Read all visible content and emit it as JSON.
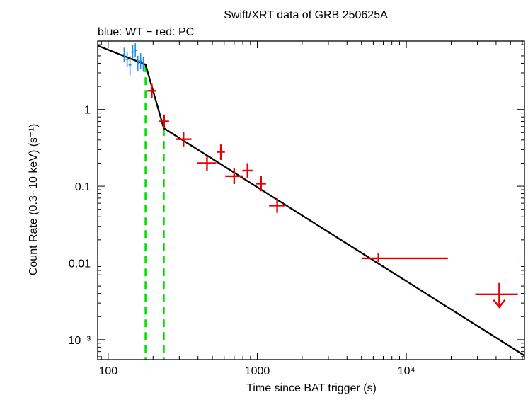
{
  "chart_data": {
    "type": "scatter",
    "title": "Swift/XRT data of GRB 250625A",
    "subtitle": "blue: WT − red: PC",
    "xlabel": "Time since BAT trigger (s)",
    "ylabel": "Count Rate (0.3−10 keV) (s⁻¹)",
    "xscale": "log",
    "yscale": "log",
    "xlim": [
      85,
      62000
    ],
    "ylim": [
      0.00055,
      7.8
    ],
    "x_ticks": [
      {
        "value": 100,
        "label": "100"
      },
      {
        "value": 1000,
        "label": "1000"
      },
      {
        "value": 10000,
        "label": "10⁴"
      }
    ],
    "y_ticks": [
      {
        "value": 1,
        "label": "1"
      },
      {
        "value": 0.1,
        "label": "0.1"
      },
      {
        "value": 0.01,
        "label": "0.01"
      },
      {
        "value": 0.001,
        "label": "10⁻³"
      }
    ],
    "series": [
      {
        "name": "WT",
        "color": "#1e8ce6",
        "points": [
          {
            "x": 128,
            "xlo": 125,
            "xhi": 131,
            "y": 5.2,
            "ylo": 4.2,
            "yhi": 6.4
          },
          {
            "x": 134,
            "xlo": 131,
            "xhi": 137,
            "y": 4.5,
            "ylo": 3.6,
            "yhi": 5.6
          },
          {
            "x": 140,
            "xlo": 137,
            "xhi": 143,
            "y": 3.8,
            "ylo": 2.8,
            "yhi": 5.0
          },
          {
            "x": 146,
            "xlo": 143,
            "xhi": 149,
            "y": 5.6,
            "ylo": 4.5,
            "yhi": 6.9
          },
          {
            "x": 152,
            "xlo": 149,
            "xhi": 155,
            "y": 5.9,
            "ylo": 4.8,
            "yhi": 7.3
          },
          {
            "x": 158,
            "xlo": 155,
            "xhi": 161,
            "y": 4.0,
            "ylo": 3.2,
            "yhi": 5.0
          },
          {
            "x": 165,
            "xlo": 161,
            "xhi": 169,
            "y": 4.3,
            "ylo": 3.4,
            "yhi": 5.4
          },
          {
            "x": 172,
            "xlo": 169,
            "xhi": 175,
            "y": 3.9,
            "ylo": 3.1,
            "yhi": 4.9
          }
        ]
      },
      {
        "name": "PC",
        "color": "#e60000",
        "points": [
          {
            "x": 196,
            "xlo": 183,
            "xhi": 210,
            "y": 1.75,
            "ylo": 1.4,
            "yhi": 2.2
          },
          {
            "x": 237,
            "xlo": 219,
            "xhi": 256,
            "y": 0.7,
            "ylo": 0.57,
            "yhi": 0.86
          },
          {
            "x": 320,
            "xlo": 283,
            "xhi": 362,
            "y": 0.41,
            "ylo": 0.33,
            "yhi": 0.51
          },
          {
            "x": 460,
            "xlo": 395,
            "xhi": 530,
            "y": 0.2,
            "ylo": 0.16,
            "yhi": 0.25
          },
          {
            "x": 570,
            "xlo": 535,
            "xhi": 607,
            "y": 0.28,
            "ylo": 0.22,
            "yhi": 0.35
          },
          {
            "x": 700,
            "xlo": 610,
            "xhi": 800,
            "y": 0.135,
            "ylo": 0.107,
            "yhi": 0.17
          },
          {
            "x": 860,
            "xlo": 795,
            "xhi": 930,
            "y": 0.16,
            "ylo": 0.127,
            "yhi": 0.2
          },
          {
            "x": 1060,
            "xlo": 980,
            "xhi": 1145,
            "y": 0.108,
            "ylo": 0.086,
            "yhi": 0.136
          },
          {
            "x": 1360,
            "xlo": 1200,
            "xhi": 1540,
            "y": 0.056,
            "ylo": 0.045,
            "yhi": 0.07
          },
          {
            "x": 6500,
            "xlo": 5000,
            "xhi": 19000,
            "y": 0.0115,
            "ylo": 0.0103,
            "yhi": 0.0133
          }
        ],
        "upper_limits": [
          {
            "x": 42000,
            "xlo": 29000,
            "xhi": 56000,
            "y": 0.0039
          }
        ]
      }
    ],
    "model": {
      "name": "broken power-law fit",
      "color": "#000000",
      "points": [
        [
          85,
          6.8
        ],
        [
          178,
          3.85
        ],
        [
          236,
          0.57
        ],
        [
          62000,
          0.00062
        ]
      ]
    },
    "breaks": {
      "color": "#00e000",
      "times": [
        178,
        236
      ]
    }
  }
}
